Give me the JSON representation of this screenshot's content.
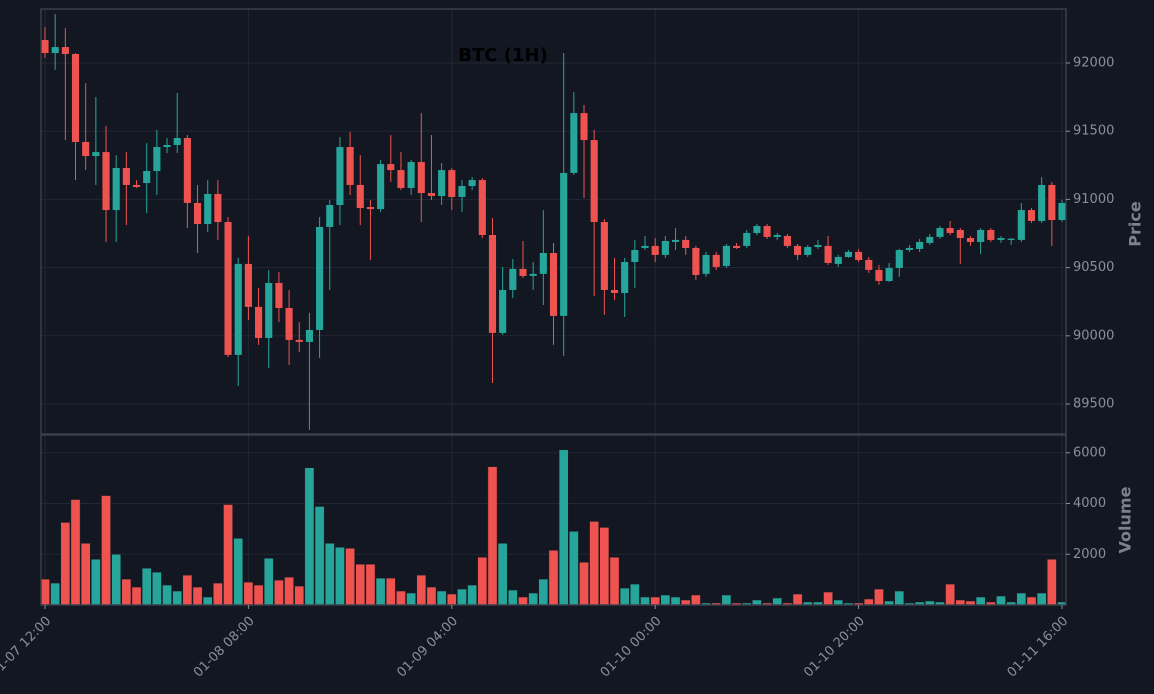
{
  "chart_data": {
    "type": "candlestick",
    "title": "BTC (1H)",
    "ylabel": "Price",
    "volume_label": "Volume",
    "up_color": "#26a69a",
    "down_color": "#ef5350",
    "grid": true,
    "categories": [
      "01-07 12:00",
      null,
      null,
      null,
      null,
      null,
      null,
      null,
      null,
      null,
      null,
      null,
      null,
      null,
      null,
      null,
      null,
      null,
      null,
      null,
      "01-08 08:00",
      null,
      null,
      null,
      null,
      null,
      null,
      null,
      null,
      null,
      null,
      null,
      null,
      null,
      null,
      null,
      null,
      null,
      null,
      null,
      "01-09 04:00",
      null,
      null,
      null,
      null,
      null,
      null,
      null,
      null,
      null,
      null,
      null,
      null,
      null,
      null,
      null,
      null,
      null,
      null,
      null,
      "01-10 00:00",
      null,
      null,
      null,
      null,
      null,
      null,
      null,
      null,
      null,
      null,
      null,
      null,
      null,
      null,
      null,
      null,
      null,
      null,
      null,
      "01-10 20:00",
      null,
      null,
      null,
      null,
      null,
      null,
      null,
      null,
      null,
      null,
      null,
      null,
      null,
      null,
      null,
      null,
      null,
      null,
      null,
      "01-11 16:00"
    ],
    "open": [
      92169,
      92073,
      92117,
      92066,
      91421,
      91318,
      91347,
      90922,
      91230,
      91106,
      91120,
      91208,
      91384,
      91399,
      91450,
      90974,
      90820,
      91040,
      90834,
      89860,
      90527,
      90212,
      89984,
      90387,
      90204,
      89970,
      89955,
      90043,
      90798,
      90959,
      91384,
      91106,
      90944,
      90929,
      91259,
      91215,
      91084,
      91274,
      91047,
      91025,
      91215,
      91018,
      91098,
      91142,
      90739,
      90021,
      90336,
      90490,
      90439,
      90454,
      90607,
      90146,
      91194,
      91633,
      91435,
      90834,
      90336,
      90314,
      90541,
      90644,
      90659,
      90593,
      90688,
      90703,
      90644,
      90454,
      90593,
      90512,
      90659,
      90659,
      90754,
      90805,
      90725,
      90732,
      90659,
      90593,
      90651,
      90659,
      90527,
      90578,
      90615,
      90556,
      90483,
      90402,
      90497,
      90629,
      90637,
      90681,
      90725,
      90790,
      90776,
      90717,
      90688,
      90776,
      90703,
      90703,
      90703,
      90922,
      90842,
      91106,
      90849
    ],
    "high": [
      92264,
      92359,
      92256,
      92073,
      91853,
      91751,
      91538,
      91325,
      91347,
      91142,
      91413,
      91509,
      91450,
      91780,
      91472,
      91106,
      91142,
      91142,
      90871,
      90571,
      90732,
      90351,
      90483,
      90468,
      90336,
      90101,
      90168,
      90871,
      90996,
      91457,
      91494,
      91325,
      90996,
      91289,
      91472,
      91347,
      91289,
      91633,
      91472,
      91267,
      91230,
      91142,
      91164,
      91157,
      90864,
      90505,
      90563,
      90695,
      90541,
      90922,
      90680,
      92073,
      91787,
      91692,
      91509,
      90856,
      90571,
      90571,
      90703,
      90732,
      90717,
      90732,
      90790,
      90732,
      90659,
      90615,
      90615,
      90673,
      90680,
      90776,
      90820,
      90820,
      90754,
      90746,
      90673,
      90666,
      90703,
      90732,
      90593,
      90629,
      90637,
      90578,
      90520,
      90534,
      90637,
      90666,
      90710,
      90746,
      90805,
      90842,
      90790,
      90732,
      90790,
      90790,
      90732,
      90717,
      90974,
      90937,
      91164,
      91128,
      90996
    ],
    "low": [
      92037,
      91949,
      91435,
      91142,
      91216,
      91106,
      90688,
      90688,
      90812,
      91084,
      90900,
      91032,
      91340,
      91340,
      90790,
      90607,
      90761,
      90703,
      89845,
      89632,
      90116,
      89933,
      89764,
      90101,
      89786,
      89882,
      89310,
      89838,
      90336,
      90812,
      91032,
      90812,
      90556,
      90908,
      91128,
      91069,
      91032,
      90834,
      90996,
      90959,
      90922,
      90908,
      91069,
      90717,
      89654,
      90006,
      90277,
      90424,
      90336,
      90226,
      89933,
      89852,
      91179,
      91010,
      90292,
      90153,
      90263,
      90138,
      90351,
      90629,
      90541,
      90571,
      90629,
      90593,
      90410,
      90432,
      90483,
      90497,
      90637,
      90644,
      90739,
      90710,
      90703,
      90644,
      90556,
      90578,
      90637,
      90520,
      90505,
      90571,
      90541,
      90461,
      90373,
      90395,
      90432,
      90615,
      90615,
      90666,
      90710,
      90739,
      90527,
      90659,
      90600,
      90688,
      90681,
      90666,
      90688,
      90827,
      90827,
      90659,
      90834
    ],
    "close": [
      92073,
      92117,
      92066,
      91421,
      91318,
      91347,
      90922,
      91230,
      91106,
      91091,
      91208,
      91384,
      91399,
      91450,
      90974,
      90820,
      91040,
      90834,
      89860,
      90527,
      90212,
      89984,
      90387,
      90204,
      89970,
      89955,
      90043,
      90798,
      90959,
      91384,
      91106,
      90937,
      90929,
      91259,
      91215,
      91084,
      91274,
      91047,
      91025,
      91215,
      91018,
      91098,
      91142,
      90739,
      90021,
      90336,
      90490,
      90439,
      90454,
      90607,
      90146,
      91194,
      91633,
      91435,
      90834,
      90336,
      90314,
      90541,
      90629,
      90659,
      90593,
      90695,
      90703,
      90644,
      90446,
      90593,
      90505,
      90659,
      90644,
      90754,
      90805,
      90725,
      90739,
      90659,
      90593,
      90651,
      90666,
      90534,
      90578,
      90615,
      90556,
      90483,
      90402,
      90497,
      90629,
      90644,
      90688,
      90725,
      90790,
      90754,
      90717,
      90688,
      90776,
      90703,
      90717,
      90712,
      90922,
      90842,
      91106,
      90849,
      90974
    ],
    "volume": [
      1020,
      863,
      3255,
      4156,
      2431,
      1804,
      4313,
      2000,
      1020,
      706,
      1451,
      1294,
      785,
      550,
      1177,
      706,
      314,
      863,
      3960,
      2627,
      902,
      785,
      1843,
      980,
      1098,
      745,
      5410,
      3882,
      2431,
      2274,
      2235,
      1608,
      1608,
      1059,
      1059,
      550,
      471,
      1177,
      706,
      550,
      432,
      628,
      785,
      1882,
      5450,
      2431,
      589,
      314,
      471,
      1020,
      2157,
      6116,
      2902,
      1686,
      3294,
      3058,
      1882,
      667,
      824,
      314,
      314,
      393,
      314,
      196,
      393,
      78,
      78,
      393,
      78,
      78,
      196,
      78,
      275,
      78,
      432,
      118,
      118,
      510,
      196,
      78,
      78,
      236,
      628,
      157,
      550,
      78,
      118,
      157,
      118,
      824,
      196,
      157,
      314,
      118,
      353,
      118,
      471,
      314,
      471,
      1804,
      118
    ],
    "ylim": [
      89280,
      92396
    ],
    "yticks": [
      89500,
      90000,
      90500,
      91000,
      91500,
      92000
    ],
    "volume_ylim": [
      0,
      6700
    ],
    "volume_yticks": [
      2000,
      4000,
      6000
    ]
  }
}
